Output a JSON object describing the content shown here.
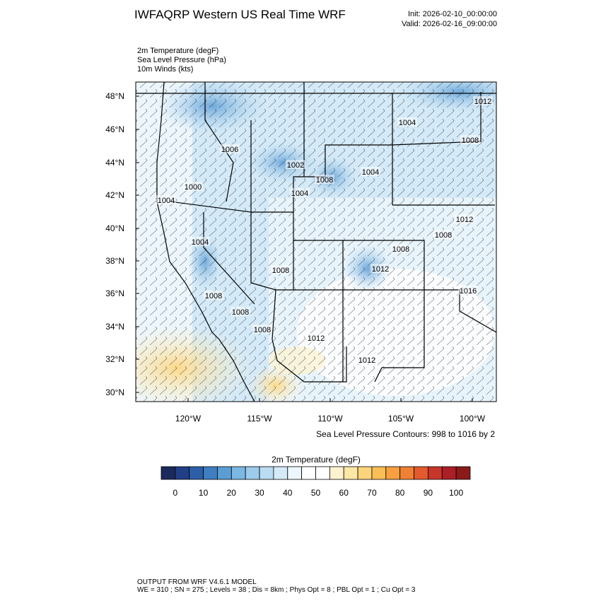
{
  "header": {
    "title": "IWFAQRP Western US Real Time WRF",
    "init": "Init: 2026-02-10_00:00:00",
    "valid": "Valid: 2026-02-16_09:00:00"
  },
  "fields": [
    "2m Temperature   (degF)",
    "Sea Level Pressure   (hPa)",
    "10m Winds   (kts)"
  ],
  "map": {
    "lat_labels": [
      "48°N",
      "46°N",
      "44°N",
      "42°N",
      "40°N",
      "38°N",
      "36°N",
      "34°N",
      "32°N",
      "30°N"
    ],
    "lon_labels": [
      "120°W",
      "115°W",
      "110°W",
      "105°W",
      "100°W"
    ],
    "contour_labels": [
      "1012",
      "1004",
      "1008",
      "1006",
      "1002",
      "1004",
      "1008",
      "1000",
      "1004",
      "1004",
      "1012",
      "1008",
      "1004",
      "1008",
      "1008",
      "1012",
      "1016",
      "1008",
      "1008",
      "1008",
      "1012",
      "1012"
    ]
  },
  "contour_note": "Sea Level Pressure Contours: 998 to 1016 by 2",
  "colorbar": {
    "title": "2m Temperature  (degF)",
    "colors": [
      "#1b2a5c",
      "#213f86",
      "#2c5fa8",
      "#3e7ec1",
      "#5a9ed4",
      "#7bb8e2",
      "#9ccbec",
      "#badcf3",
      "#d4eaf8",
      "#ecf6fc",
      "#ffffff",
      "#ffffff",
      "#fdf2d0",
      "#fde7a6",
      "#fcd47c",
      "#fbbd55",
      "#f79f41",
      "#f08134",
      "#e25a2e",
      "#c8352a",
      "#ab1f26",
      "#8b1a1a"
    ],
    "labels": [
      0,
      10,
      20,
      30,
      40,
      50,
      60,
      70,
      80,
      90,
      100
    ]
  },
  "footer": [
    "OUTPUT FROM WRF V4.6.1 MODEL",
    "WE = 310 ; SN = 275 ; Levels = 38 ; Dis = 8km ; Phys Opt = 8 ; PBL Opt = 1 ; Cu Opt = 3"
  ]
}
